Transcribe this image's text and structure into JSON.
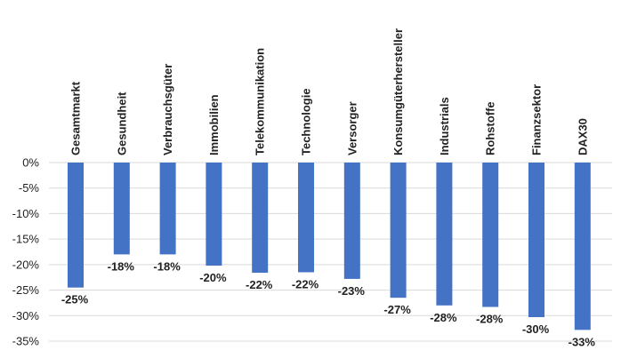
{
  "chart_data": {
    "type": "bar",
    "title": "",
    "xlabel": "",
    "ylabel": "",
    "categories": [
      "Gesamtmarkt",
      "Gesundheit",
      "Verbrauchsgüter",
      "Immobilien",
      "Telekommunikation",
      "Technologie",
      "Versorger",
      "Konsumgüterhersteller",
      "Industrials",
      "Rohstoffe",
      "Finanzsektor",
      "DAX30"
    ],
    "series": [
      {
        "values": [
          -24.5,
          -18,
          -18,
          -20.2,
          -21.6,
          -21.5,
          -22.8,
          -26.5,
          -28,
          -28.3,
          -30.3,
          -32.8
        ],
        "data_labels": [
          "-25%",
          "-18%",
          "-18%",
          "-20%",
          "-22%",
          "-22%",
          "-23%",
          "-27%",
          "-28%",
          "-28%",
          "-30%",
          "-33%"
        ]
      }
    ],
    "ylim": [
      -35,
      0
    ],
    "y_ticks": [
      0,
      -5,
      -10,
      -15,
      -20,
      -25,
      -30,
      -35
    ],
    "y_tick_labels": [
      "0%",
      "-5%",
      "-10%",
      "-15%",
      "-20%",
      "-25%",
      "-30%",
      "-35%"
    ],
    "grid": true,
    "legend": "none",
    "colors": {
      "bar": "#4472c4",
      "grid": "#d9d9d9",
      "text": "#222222"
    }
  }
}
